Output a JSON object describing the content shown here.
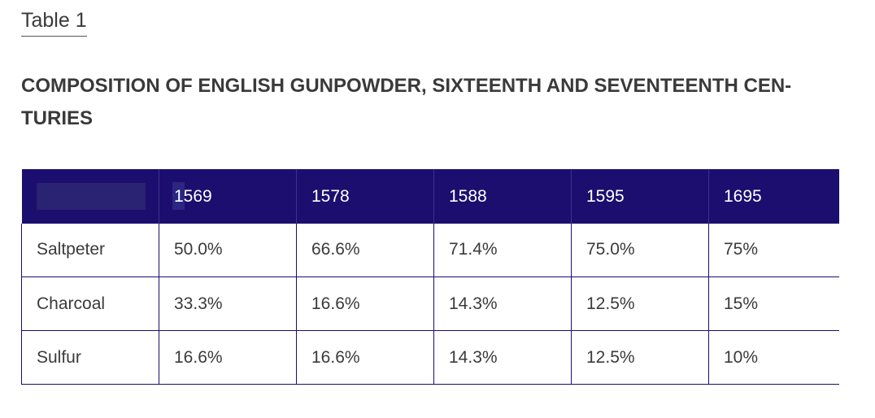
{
  "table_label": "Table 1",
  "title": "COMPOSITION OF ENGLISH GUNPOWDER, SIXTEENTH AND SEVENTEENTH CEN- TURIES",
  "table": {
    "header": [
      "",
      "1569",
      "1578",
      "1588",
      "1595",
      "1695"
    ],
    "rows": [
      [
        "Saltpeter",
        "50.0%",
        "66.6%",
        "71.4%",
        "75.0%",
        "75%"
      ],
      [
        "Charcoal",
        "33.3%",
        "16.6%",
        "14.3%",
        "12.5%",
        "15%"
      ],
      [
        "Sulfur",
        "16.6%",
        "16.6%",
        "14.3%",
        "12.5%",
        "10%"
      ]
    ]
  },
  "colors": {
    "header_background": "#1c0e6e",
    "header_text": "#ffffff",
    "border": "#1c0e6e",
    "body_text": "#3a3a3a"
  }
}
